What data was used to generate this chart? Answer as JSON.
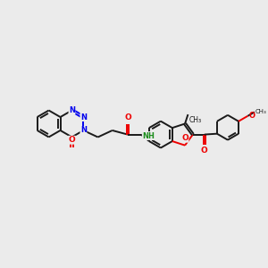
{
  "bg_color": "#ebebeb",
  "bond_color": "#1a1a1a",
  "nitrogen_color": "#0000ee",
  "oxygen_color": "#ee0000",
  "bond_lw": 1.4,
  "figsize": [
    3.0,
    3.0
  ],
  "dpi": 100,
  "xlim": [
    0,
    10
  ],
  "ylim": [
    0,
    10
  ]
}
